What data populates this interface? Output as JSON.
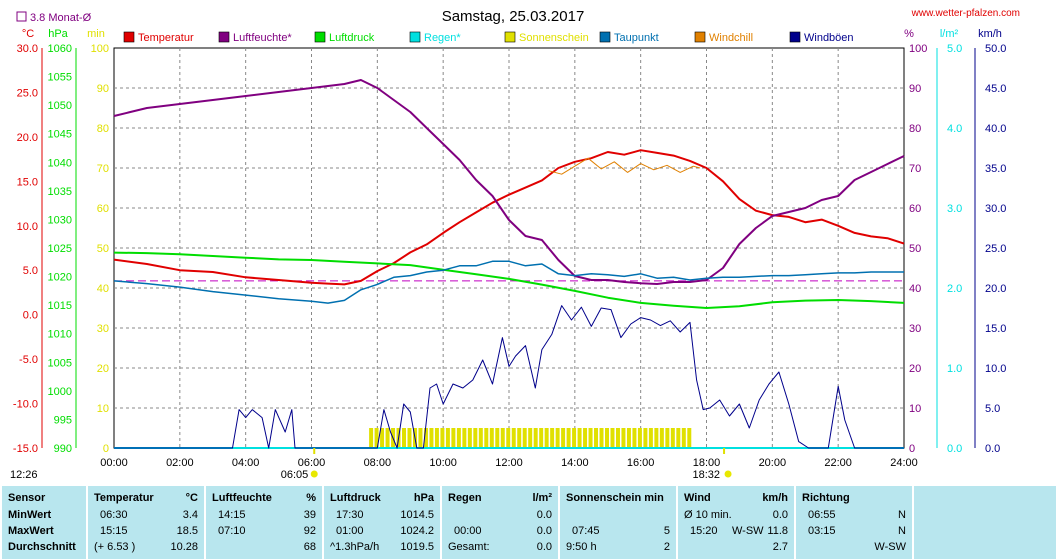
{
  "header": {
    "title": "Samstag, 25.03.2017",
    "site": "www.wetter-pfalzen.com",
    "monthly_avg": "3.8 Monat-Ø"
  },
  "colors": {
    "temperature": "#e00000",
    "humidity": "#800080",
    "pressure": "#00dd00",
    "rain": "#00e0e0",
    "sunshine": "#e0e000",
    "dewpoint": "#0070b0",
    "windchill": "#e08000",
    "gusts": "#00008b",
    "table_bg": "#b8e6ee"
  },
  "chart_data": {
    "type": "line",
    "x_unit": "hour",
    "x_ticks": [
      "00:00",
      "02:00",
      "04:00",
      "06:00",
      "08:00",
      "10:00",
      "12:00",
      "14:00",
      "16:00",
      "18:00",
      "20:00",
      "22:00",
      "24:00"
    ],
    "x_range": [
      0,
      24
    ],
    "axes": {
      "temp_c": {
        "unit": "°C",
        "range": [
          -15,
          30
        ],
        "ticks": [
          "-15.0",
          "-10.0",
          "-5.0",
          "0.0",
          "5.0",
          "10.0",
          "15.0",
          "20.0",
          "25.0",
          "30.0"
        ]
      },
      "pressure_hpa": {
        "unit": "hPa",
        "range": [
          990,
          1060
        ],
        "ticks": [
          "990",
          "995",
          "1000",
          "1005",
          "1010",
          "1015",
          "1020",
          "1025",
          "1030",
          "1035",
          "1040",
          "1045",
          "1050",
          "1055",
          "1060"
        ]
      },
      "sun_min": {
        "unit": "min",
        "range": [
          0,
          100
        ],
        "ticks": [
          "0",
          "10",
          "20",
          "30",
          "40",
          "50",
          "60",
          "70",
          "80",
          "90",
          "100"
        ]
      },
      "humidity_pct": {
        "unit": "%",
        "range": [
          0,
          100
        ],
        "ticks": [
          "0",
          "10",
          "20",
          "30",
          "40",
          "50",
          "60",
          "70",
          "80",
          "90",
          "100"
        ]
      },
      "rain_lm2": {
        "unit": "l/m²",
        "range": [
          0,
          5
        ],
        "ticks": [
          "0.0",
          "1.0",
          "2.0",
          "3.0",
          "4.0",
          "5.0"
        ]
      },
      "wind_kmh": {
        "unit": "km/h",
        "range": [
          0,
          50
        ],
        "ticks": [
          "0.0",
          "5.0",
          "10.0",
          "15.0",
          "20.0",
          "25.0",
          "30.0",
          "35.0",
          "40.0",
          "45.0",
          "50.0"
        ]
      }
    },
    "legend": [
      {
        "name": "Temperatur",
        "color": "#e00000"
      },
      {
        "name": "Luftfeuchte*",
        "color": "#800080"
      },
      {
        "name": "Luftdruck",
        "color": "#00dd00"
      },
      {
        "name": "Regen*",
        "color": "#00e0e0"
      },
      {
        "name": "Sonnenschein",
        "color": "#e0e000"
      },
      {
        "name": "Taupunkt",
        "color": "#0070b0"
      },
      {
        "name": "Windchill",
        "color": "#e08000"
      },
      {
        "name": "Windböen",
        "color": "#00008b"
      }
    ],
    "monthly_avg_temp": 3.8,
    "series": [
      {
        "name": "Temperatur",
        "axis": "temp_c",
        "x": [
          0,
          1,
          2,
          3,
          4,
          5,
          6,
          6.5,
          7,
          7.5,
          8,
          8.5,
          9,
          9.5,
          10,
          10.5,
          11,
          11.5,
          12,
          12.5,
          13,
          13.5,
          14,
          14.5,
          15,
          15.5,
          16,
          16.5,
          17,
          17.5,
          18,
          18.5,
          19,
          19.5,
          20,
          20.5,
          21,
          21.5,
          22,
          22.5,
          23,
          23.5,
          24
        ],
        "y": [
          6.2,
          5.7,
          5.0,
          4.8,
          4.2,
          3.9,
          3.6,
          3.5,
          3.4,
          3.8,
          4.9,
          5.8,
          7.0,
          7.9,
          9.2,
          10.4,
          11.5,
          12.6,
          13.5,
          14.3,
          15.1,
          16.5,
          17.2,
          17.6,
          18.3,
          18.0,
          18.5,
          18.2,
          17.9,
          17.3,
          16.5,
          15.0,
          13.0,
          11.7,
          11.2,
          11.0,
          10.4,
          10.7,
          10.0,
          9.2,
          8.8,
          8.6,
          8.0
        ]
      },
      {
        "name": "Luftfeuchte*",
        "axis": "humidity_pct",
        "x": [
          0,
          1,
          2,
          3,
          4,
          5,
          6,
          6.5,
          7,
          7.5,
          8,
          8.5,
          9,
          9.5,
          10,
          10.5,
          11,
          11.5,
          12,
          12.5,
          13,
          13.5,
          14,
          14.5,
          15,
          15.5,
          16,
          16.5,
          17,
          17.5,
          18,
          18.5,
          19,
          19.5,
          20,
          20.5,
          21,
          21.5,
          22,
          22.5,
          23,
          23.5,
          24
        ],
        "y": [
          83,
          85,
          86,
          87,
          88,
          89,
          90,
          90.5,
          91,
          92,
          90,
          87,
          84,
          80,
          76,
          72,
          67,
          63,
          57,
          53,
          52,
          47,
          43,
          42,
          42,
          41.5,
          41.2,
          41,
          41.5,
          41.5,
          42,
          45,
          51,
          55,
          58,
          59,
          60,
          62,
          63,
          67,
          69,
          71,
          73
        ]
      },
      {
        "name": "Luftdruck",
        "axis": "pressure_hpa",
        "x": [
          0,
          1,
          2,
          3,
          4,
          5,
          6,
          7,
          8,
          9,
          10,
          11,
          12,
          13,
          14,
          15,
          16,
          17,
          18,
          19,
          20,
          21,
          22,
          23,
          24
        ],
        "y": [
          1024.2,
          1024.1,
          1023.9,
          1023.6,
          1023.3,
          1023.0,
          1022.9,
          1022.6,
          1022.3,
          1022.0,
          1021.2,
          1020.4,
          1019.6,
          1018.6,
          1017.5,
          1016.3,
          1015.4,
          1014.9,
          1014.5,
          1014.8,
          1015.5,
          1015.8,
          1015.9,
          1015.7,
          1015.4
        ]
      },
      {
        "name": "Regen*",
        "axis": "rain_lm2",
        "x": [
          0,
          24
        ],
        "y": [
          0.0,
          0.0
        ]
      },
      {
        "name": "Taupunkt",
        "axis": "temp_c",
        "x": [
          0,
          1,
          2,
          3,
          4,
          5,
          6,
          6.5,
          7,
          7.5,
          8,
          8.5,
          9,
          9.5,
          10,
          10.5,
          11,
          11.5,
          12,
          12.5,
          13,
          13.5,
          14,
          14.5,
          15,
          15.5,
          16,
          16.5,
          17,
          17.5,
          18,
          18.5,
          19,
          19.5,
          20,
          20.5,
          21,
          21.5,
          22,
          22.5,
          23,
          23.5,
          24
        ],
        "y": [
          3.8,
          3.5,
          3.1,
          2.6,
          2.2,
          1.8,
          1.5,
          1.3,
          1.6,
          2.8,
          3.4,
          4.2,
          4.4,
          4.8,
          5.0,
          5.5,
          5.5,
          6.0,
          6.0,
          5.5,
          5.7,
          4.6,
          4.4,
          4.6,
          4.5,
          4.3,
          4.6,
          4.1,
          4.2,
          3.9,
          4.1,
          4.2,
          4.2,
          4.3,
          4.4,
          4.4,
          4.5,
          4.6,
          4.7,
          4.7,
          4.8,
          4.8,
          4.8
        ]
      },
      {
        "name": "Windchill",
        "axis": "temp_c",
        "x": [
          13.2,
          13.6,
          14,
          14.4,
          14.8,
          15.2,
          15.6,
          16,
          16.4,
          16.8,
          17.2,
          17.6,
          17.8
        ],
        "y": [
          16.2,
          15.8,
          16.7,
          17.6,
          16.4,
          17.2,
          16.0,
          17.0,
          16.3,
          16.8,
          16.0,
          16.7,
          16.5
        ]
      },
      {
        "name": "Windböen",
        "axis": "wind_kmh",
        "x": [
          0,
          3.6,
          3.8,
          4,
          4.2,
          4.5,
          4.7,
          4.9,
          5.2,
          5.4,
          5.5,
          8,
          8.2,
          8.4,
          8.6,
          8.8,
          9,
          9.2,
          9.4,
          9.6,
          9.8,
          10,
          10.3,
          10.6,
          10.9,
          11.2,
          11.5,
          11.8,
          12,
          12.2,
          12.5,
          12.8,
          13,
          13.3,
          13.6,
          13.9,
          14.2,
          14.5,
          14.8,
          15.1,
          15.4,
          15.7,
          16,
          16.3,
          16.6,
          16.9,
          17.2,
          17.5,
          17.7,
          17.9,
          18.1,
          18.4,
          18.7,
          19,
          19.3,
          19.6,
          19.9,
          20.2,
          20.5,
          20.8,
          21.1,
          21.4,
          21.7,
          22,
          22.2,
          22.5,
          22.8,
          24
        ],
        "y": [
          0,
          0,
          4.8,
          3.8,
          4.8,
          3.8,
          0,
          4.8,
          2,
          4.8,
          0,
          0,
          4.8,
          2,
          0,
          5.5,
          4.5,
          0,
          0,
          7.5,
          8.0,
          5.5,
          8.0,
          7.5,
          8.5,
          11.0,
          8.0,
          13.8,
          10.2,
          11.5,
          12.8,
          7.5,
          12.3,
          14.2,
          17.8,
          16.0,
          17.6,
          15.2,
          17.5,
          17.3,
          13.8,
          15.5,
          16.3,
          16.0,
          15.3,
          15.9,
          14.5,
          15.7,
          8.5,
          4.8,
          5.0,
          6.0,
          4.0,
          5.5,
          2.5,
          6.0,
          8.0,
          9.5,
          5.5,
          0.8,
          0,
          0,
          0,
          7.7,
          3.5,
          0,
          0,
          0
        ]
      }
    ],
    "sunshine_bars": {
      "axis": "sun_min",
      "start_hour": 7.75,
      "end_hour": 17.5,
      "level": 5
    },
    "markers": {
      "sunrise": "06:05",
      "sunset": "18:32",
      "moon": "12:26"
    }
  },
  "table": {
    "row_labels": [
      "Sensor",
      "MinWert",
      "MaxWert",
      "Durchschnitt"
    ],
    "temperature": {
      "head": "Temperatur",
      "unit": "°C",
      "min_time": "06:30",
      "min_val": "3.4",
      "max_time": "15:15",
      "max_val": "18.5",
      "avg_note": "(+ 6.53 )",
      "avg_val": "10.28"
    },
    "humidity": {
      "head": "Luftfeuchte",
      "unit": "%",
      "min_time": "14:15",
      "min_val": "39",
      "max_time": "07:10",
      "max_val": "92",
      "avg_val": "68"
    },
    "pressure": {
      "head": "Luftdruck",
      "unit": "hPa",
      "min_time": "17:30",
      "min_val": "1014.5",
      "max_time": "01:00",
      "max_val": "1024.2",
      "avg_note": "^1.3hPa/h",
      "avg_val": "1019.5"
    },
    "rain": {
      "head": "Regen",
      "unit": "l/m²",
      "min_val": "0.0",
      "max_time": "00:00",
      "max_val": "0.0",
      "avg_note": "Gesamt:",
      "avg_val": "0.0"
    },
    "sunshine": {
      "head": "Sonnenschein min",
      "max_time": "07:45",
      "max_val": "5",
      "avg_note": "9:50 h",
      "avg_val": "2"
    },
    "wind": {
      "head": "Wind",
      "unit": "km/h",
      "min_time": "Ø 10 min.",
      "min_val": "0.0",
      "max_time": "15:20",
      "max_dir": "W-SW",
      "max_val": "11.8",
      "avg_val": "2.7"
    },
    "direction": {
      "head": "Richtung",
      "min_time": "06:55",
      "min_val": "N",
      "max_time": "03:15",
      "max_val": "N",
      "avg_val": "W-SW"
    }
  }
}
